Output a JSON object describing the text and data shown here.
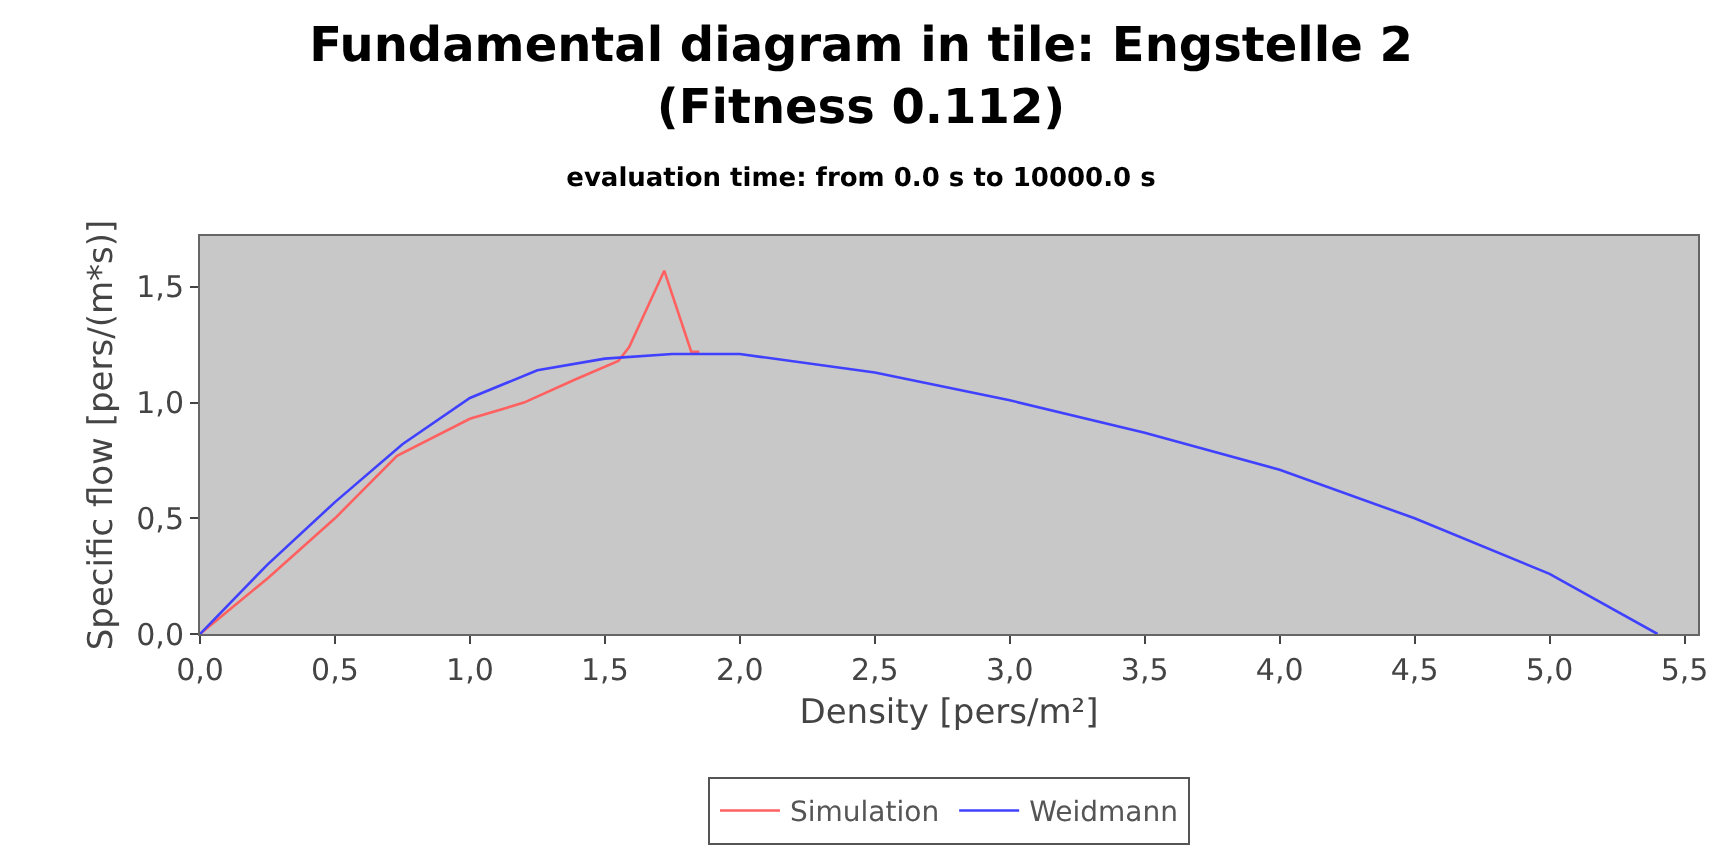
{
  "chart_data": {
    "type": "line",
    "title": "Fundamental diagram in tile: Engstelle 2\n(Fitness 0.112)",
    "subtitle": "evaluation time: from 0.0 s to 10000.0 s",
    "xlabel": "Density [pers/m²]",
    "ylabel": "Specific flow [pers/(m*s)]",
    "series": [
      {
        "name": "Simulation",
        "color": "#ff6060",
        "x": [
          0,
          0.25,
          0.5,
          0.73,
          1.0,
          1.2,
          1.39,
          1.55,
          1.59,
          1.72,
          1.82,
          1.85
        ],
        "values": [
          0,
          0.24,
          0.5,
          0.77,
          0.93,
          1.0,
          1.1,
          1.18,
          1.24,
          1.57,
          1.22,
          1.22
        ]
      },
      {
        "name": "Weidmann",
        "color": "#4040ff",
        "x": [
          0,
          0.25,
          0.5,
          0.75,
          1.0,
          1.25,
          1.5,
          1.75,
          2.0,
          2.5,
          3.0,
          3.5,
          4.0,
          4.5,
          5.0,
          5.4
        ],
        "values": [
          0,
          0.3,
          0.57,
          0.82,
          1.02,
          1.14,
          1.19,
          1.21,
          1.21,
          1.13,
          1.01,
          0.87,
          0.71,
          0.5,
          0.26,
          0
        ]
      }
    ],
    "xlim": [
      0,
      5.55
    ],
    "ylim": [
      0,
      1.72
    ],
    "xticks": [
      {
        "value": 0,
        "label": "0,0"
      },
      {
        "value": 0.5,
        "label": "0,5"
      },
      {
        "value": 1,
        "label": "1,0"
      },
      {
        "value": 1.5,
        "label": "1,5"
      },
      {
        "value": 2,
        "label": "2,0"
      },
      {
        "value": 2.5,
        "label": "2,5"
      },
      {
        "value": 3,
        "label": "3,0"
      },
      {
        "value": 3.5,
        "label": "3,5"
      },
      {
        "value": 4,
        "label": "4,0"
      },
      {
        "value": 4.5,
        "label": "4,5"
      },
      {
        "value": 5,
        "label": "5,0"
      },
      {
        "value": 5.5,
        "label": "5,5"
      }
    ],
    "yticks": [
      {
        "value": 0,
        "label": "0,0"
      },
      {
        "value": 0.5,
        "label": "0,5"
      },
      {
        "value": 1,
        "label": "1,0"
      },
      {
        "value": 1.5,
        "label": "1,5"
      }
    ],
    "grid": false,
    "legend": "bottom",
    "marker": "none",
    "line_style": "solid"
  }
}
